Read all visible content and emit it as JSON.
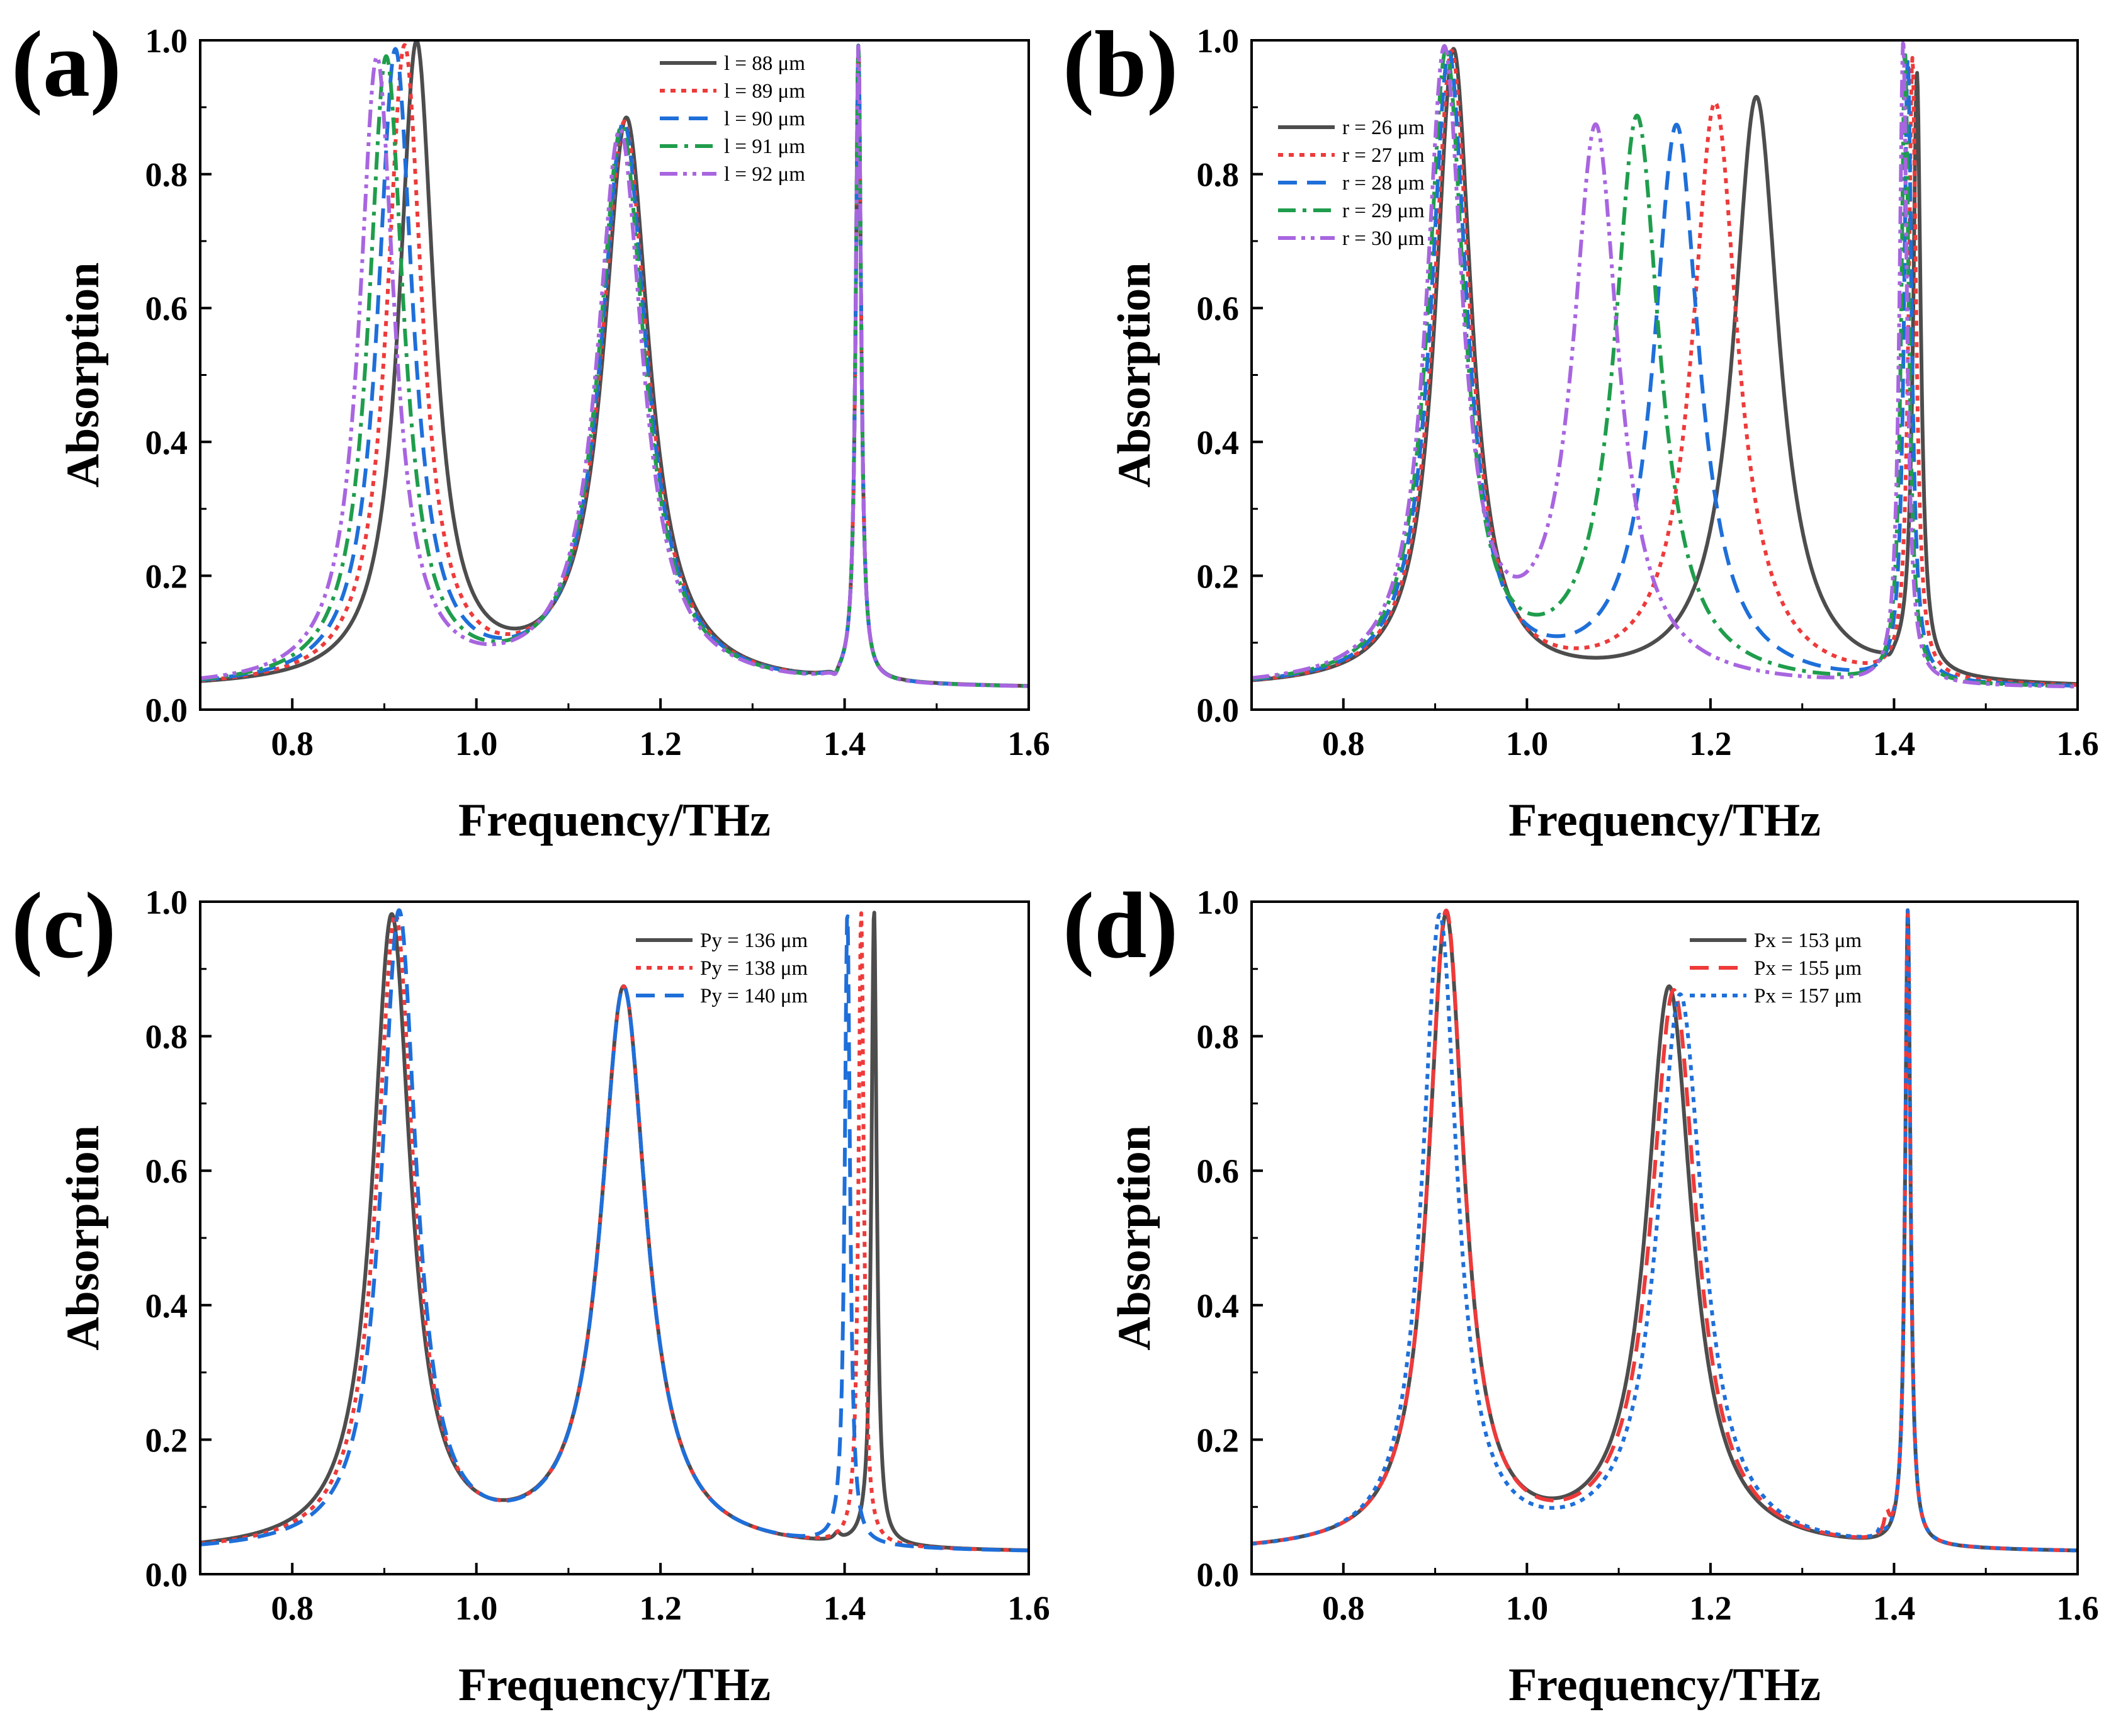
{
  "figure": {
    "x_axis_label": "Frequency/THz",
    "y_axis_label": "Absorption"
  },
  "chart_data": [
    {
      "type": "line",
      "panel_label": "(a)",
      "xlabel": "Frequency/THz",
      "ylabel": "Absorption",
      "xlim": [
        0.7,
        1.6
      ],
      "ylim": [
        0.0,
        1.0
      ],
      "x_ticks": [
        "0.8",
        "1.0",
        "1.2",
        "1.4",
        "1.6"
      ],
      "y_ticks": [
        "0.0",
        "0.2",
        "0.4",
        "0.6",
        "0.8",
        "1.0"
      ],
      "legend_position": "top-right",
      "series": [
        {
          "name": "l = 88 μm",
          "color": "#4d4d4d",
          "dash": "solid",
          "baseline": 0.03,
          "peaks": [
            [
              0.935,
              0.985,
              0.023
            ],
            [
              1.163,
              0.875,
              0.03
            ],
            [
              1.415,
              0.98,
              0.0035
            ]
          ],
          "dips": [
            [
              1.39,
              0.01,
              0.004
            ]
          ]
        },
        {
          "name": "l = 89 μm",
          "color": "#ee3a3a",
          "dash": "dot",
          "baseline": 0.03,
          "peaks": [
            [
              0.922,
              0.98,
              0.023
            ],
            [
              1.161,
              0.87,
              0.03
            ],
            [
              1.415,
              0.98,
              0.0035
            ]
          ],
          "dips": [
            [
              1.39,
              0.01,
              0.004
            ]
          ]
        },
        {
          "name": "l = 90 μm",
          "color": "#1e6fd9",
          "dash": "dash",
          "baseline": 0.03,
          "peaks": [
            [
              0.912,
              0.975,
              0.023
            ],
            [
              1.16,
              0.87,
              0.03
            ],
            [
              1.415,
              0.98,
              0.0035
            ]
          ],
          "dips": [
            [
              1.39,
              0.01,
              0.004
            ]
          ]
        },
        {
          "name": "l = 91 μm",
          "color": "#1f9d4c",
          "dash": "dashdot",
          "baseline": 0.03,
          "peaks": [
            [
              0.902,
              0.965,
              0.023
            ],
            [
              1.158,
              0.865,
              0.03
            ],
            [
              1.415,
              0.98,
              0.0035
            ]
          ],
          "dips": [
            [
              1.39,
              0.01,
              0.004
            ]
          ]
        },
        {
          "name": "l = 92 μm",
          "color": "#a865e0",
          "dash": "dashdotdot",
          "baseline": 0.03,
          "peaks": [
            [
              0.892,
              0.965,
              0.023
            ],
            [
              1.156,
              0.86,
              0.03
            ],
            [
              1.415,
              0.98,
              0.0035
            ]
          ],
          "dips": [
            [
              1.39,
              0.01,
              0.004
            ]
          ]
        }
      ]
    },
    {
      "type": "line",
      "panel_label": "(b)",
      "xlabel": "Frequency/THz",
      "ylabel": "Absorption",
      "xlim": [
        0.7,
        1.6
      ],
      "ylim": [
        0.0,
        1.0
      ],
      "x_ticks": [
        "0.8",
        "1.0",
        "1.2",
        "1.4",
        "1.6"
      ],
      "y_ticks": [
        "0.0",
        "0.2",
        "0.4",
        "0.6",
        "0.8",
        "1.0"
      ],
      "legend_position": "top-left",
      "series": [
        {
          "name": "r = 26 μm",
          "color": "#4d4d4d",
          "dash": "solid",
          "baseline": 0.03,
          "peaks": [
            [
              0.92,
              0.98,
              0.024
            ],
            [
              1.25,
              0.91,
              0.03
            ],
            [
              1.425,
              0.925,
              0.005
            ]
          ],
          "dips": [
            [
              1.395,
              0.01,
              0.005
            ]
          ]
        },
        {
          "name": "r = 27 μm",
          "color": "#ee3a3a",
          "dash": "dot",
          "baseline": 0.03,
          "peaks": [
            [
              0.918,
              0.975,
              0.024
            ],
            [
              1.205,
              0.9,
              0.03
            ],
            [
              1.42,
              0.955,
              0.005
            ]
          ],
          "dips": []
        },
        {
          "name": "r = 28 μm",
          "color": "#1e6fd9",
          "dash": "dash",
          "baseline": 0.03,
          "peaks": [
            [
              0.915,
              0.97,
              0.024
            ],
            [
              1.163,
              0.865,
              0.03
            ],
            [
              1.415,
              0.96,
              0.005
            ]
          ],
          "dips": []
        },
        {
          "name": "r = 29 μm",
          "color": "#1f9d4c",
          "dash": "dashdot",
          "baseline": 0.03,
          "peaks": [
            [
              0.912,
              0.97,
              0.024
            ],
            [
              1.12,
              0.875,
              0.03
            ],
            [
              1.412,
              0.97,
              0.005
            ]
          ],
          "dips": []
        },
        {
          "name": "r = 30 μm",
          "color": "#a865e0",
          "dash": "dashdotdot",
          "baseline": 0.03,
          "peaks": [
            [
              0.91,
              0.965,
              0.024
            ],
            [
              1.075,
              0.855,
              0.03
            ],
            [
              1.41,
              0.99,
              0.005
            ]
          ],
          "dips": []
        }
      ]
    },
    {
      "type": "line",
      "panel_label": "(c)",
      "xlabel": "Frequency/THz",
      "ylabel": "Absorption",
      "xlim": [
        0.7,
        1.6
      ],
      "ylim": [
        0.0,
        1.0
      ],
      "x_ticks": [
        "0.8",
        "1.0",
        "1.2",
        "1.4",
        "1.6"
      ],
      "y_ticks": [
        "0.0",
        "0.2",
        "0.4",
        "0.6",
        "0.8",
        "1.0"
      ],
      "legend_position": "top-right",
      "series": [
        {
          "name": "Py = 136 μm",
          "color": "#4d4d4d",
          "dash": "solid",
          "baseline": 0.03,
          "peaks": [
            [
              0.908,
              0.97,
              0.025
            ],
            [
              1.16,
              0.865,
              0.03
            ],
            [
              1.432,
              0.975,
              0.0035
            ],
            [
              1.392,
              0.04,
              0.004
            ]
          ],
          "dips": []
        },
        {
          "name": "Py = 138 μm",
          "color": "#ee3a3a",
          "dash": "dot",
          "baseline": 0.03,
          "peaks": [
            [
              0.912,
              0.97,
              0.024
            ],
            [
              1.16,
              0.865,
              0.03
            ],
            [
              1.418,
              0.97,
              0.0035
            ]
          ],
          "dips": []
        },
        {
          "name": "Py = 140 μm",
          "color": "#1e6fd9",
          "dash": "dash",
          "baseline": 0.03,
          "peaks": [
            [
              0.916,
              0.975,
              0.023
            ],
            [
              1.16,
              0.865,
              0.03
            ],
            [
              1.403,
              0.97,
              0.0035
            ]
          ],
          "dips": []
        }
      ]
    },
    {
      "type": "line",
      "panel_label": "(d)",
      "xlabel": "Frequency/THz",
      "ylabel": "Absorption",
      "xlim": [
        0.7,
        1.6
      ],
      "ylim": [
        0.0,
        1.0
      ],
      "x_ticks": [
        "0.8",
        "1.0",
        "1.2",
        "1.4",
        "1.6"
      ],
      "y_ticks": [
        "0.0",
        "0.2",
        "0.4",
        "0.6",
        "0.8",
        "1.0"
      ],
      "legend_position": "top-right",
      "series": [
        {
          "name": "Px = 153 μm",
          "color": "#4d4d4d",
          "dash": "solid",
          "baseline": 0.03,
          "peaks": [
            [
              0.912,
              0.97,
              0.024
            ],
            [
              1.155,
              0.865,
              0.03
            ],
            [
              1.415,
              0.975,
              0.0035
            ]
          ],
          "dips": []
        },
        {
          "name": "Px = 155 μm",
          "color": "#ee3a3a",
          "dash": "dash",
          "baseline": 0.03,
          "peaks": [
            [
              0.912,
              0.975,
              0.024
            ],
            [
              1.16,
              0.86,
              0.03
            ],
            [
              1.415,
              0.975,
              0.0035
            ],
            [
              1.392,
              0.06,
              0.003
            ]
          ],
          "dips": []
        },
        {
          "name": "Px = 157 μm",
          "color": "#1e6fd9",
          "dash": "dot",
          "baseline": 0.03,
          "peaks": [
            [
              0.905,
              0.97,
              0.023
            ],
            [
              1.167,
              0.855,
              0.03
            ],
            [
              1.415,
              0.975,
              0.0035
            ],
            [
              1.385,
              0.04,
              0.003
            ]
          ],
          "dips": []
        }
      ]
    }
  ]
}
